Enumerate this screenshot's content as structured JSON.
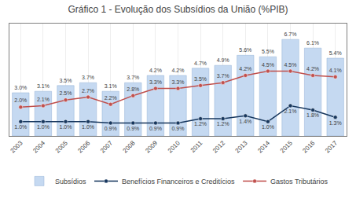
{
  "chart_data": {
    "type": "bar",
    "title": "Gráfico 1 - Evolução dos Subsídios da União (%PIB)",
    "categories": [
      "2003",
      "2004",
      "2005",
      "2006",
      "2007",
      "2008",
      "2009",
      "2010",
      "2011",
      "2012",
      "2013",
      "2014",
      "2015",
      "2016",
      "2017"
    ],
    "series": [
      {
        "name": "Subsídios",
        "type": "bar",
        "color": "#c5d9f1",
        "values": [
          3.0,
          3.1,
          3.5,
          3.7,
          3.1,
          3.7,
          4.2,
          4.2,
          4.7,
          4.9,
          5.6,
          5.5,
          6.7,
          6.1,
          5.4
        ],
        "value_labels": [
          "3.0%",
          "3.1%",
          "3.5%",
          "3.7%",
          "3.1%",
          "3.7%",
          "4.2%",
          "4.2%",
          "4.7%",
          "4.9%",
          "5.6%",
          "5.5%",
          "6.7%",
          "6.1%",
          "5.4%"
        ]
      },
      {
        "name": "Benefícios Financeiros e Creditícios",
        "type": "line",
        "color": "#17375e",
        "marker": "circle",
        "line_style": "solid",
        "values": [
          1.0,
          1.0,
          1.0,
          1.0,
          0.9,
          0.9,
          0.9,
          0.9,
          1.2,
          1.2,
          1.4,
          1.0,
          2.1,
          1.8,
          1.3
        ],
        "value_labels": [
          "1.0%",
          "1.0%",
          "1.0%",
          "1.0%",
          "0.9%",
          "0.9%",
          "0.9%",
          "0.9%",
          "1.2%",
          "1.2%",
          "1.4%",
          "1.0%",
          "2.1%",
          "1.8%",
          "1.3%"
        ]
      },
      {
        "name": "Gastos Tributários",
        "type": "line",
        "color": "#c0504d",
        "marker": "circle",
        "line_style": "solid",
        "values": [
          2.0,
          2.1,
          2.5,
          2.7,
          2.2,
          2.8,
          3.3,
          3.3,
          3.5,
          3.7,
          4.2,
          4.5,
          4.5,
          4.2,
          4.1
        ],
        "value_labels": [
          "2.0%",
          "2.1%",
          "2.5%",
          "2.7%",
          "2.2%",
          "2.8%",
          "3.3%",
          "3.3%",
          "3.5%",
          "3.7%",
          "4.2%",
          "4.5%",
          "4.5%",
          "4.2%",
          "4.1%"
        ]
      }
    ],
    "ylim": [
      0,
      7.8
    ],
    "yticks": [],
    "tick_labels": "x",
    "grid": "x",
    "legend": "bottom",
    "data_labels": true
  }
}
